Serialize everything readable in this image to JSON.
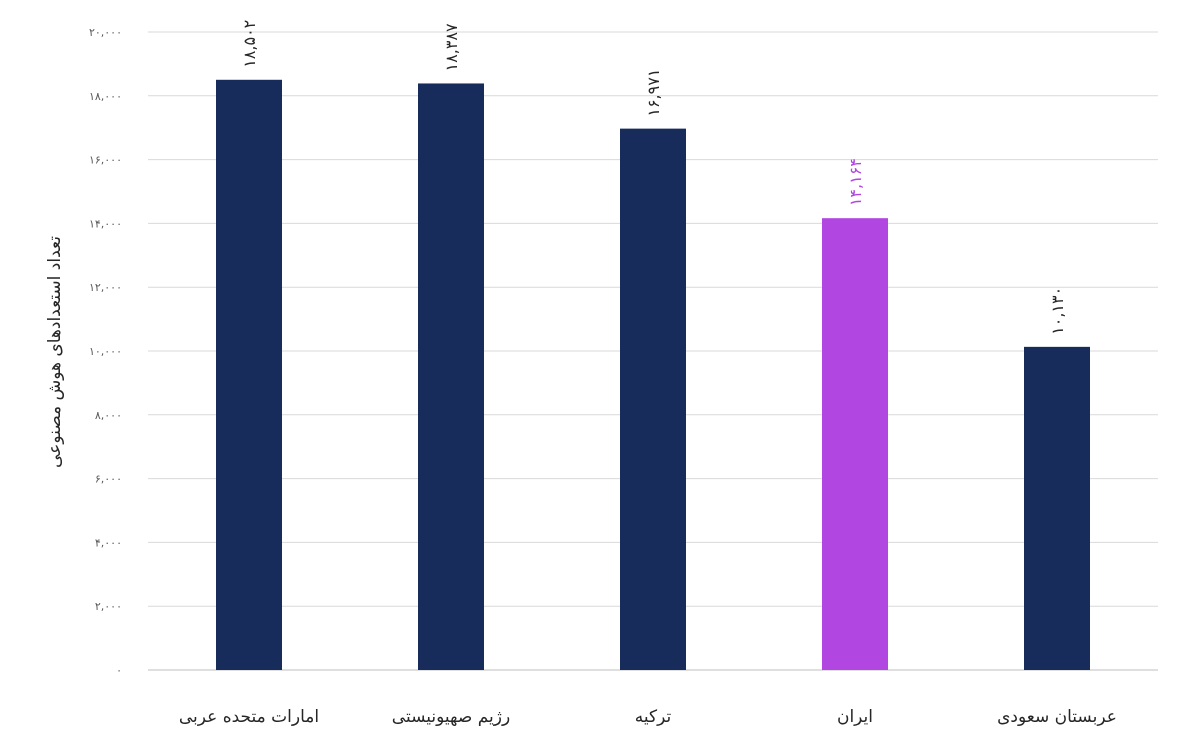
{
  "chart_data": {
    "type": "bar",
    "ylabel": "تعداد استعدادهای هوش مصنوعی",
    "ylim": [
      0,
      20000
    ],
    "yticks": [
      0,
      2000,
      4000,
      6000,
      8000,
      10000,
      12000,
      14000,
      16000,
      18000,
      20000
    ],
    "ytick_labels": [
      "۰",
      "۲,۰۰۰",
      "۴,۰۰۰",
      "۶,۰۰۰",
      "۸,۰۰۰",
      "۱۰,۰۰۰",
      "۱۲,۰۰۰",
      "۱۴,۰۰۰",
      "۱۶,۰۰۰",
      "۱۸,۰۰۰",
      "۲۰,۰۰۰"
    ],
    "categories": [
      "امارات متحده عربی",
      "رژیم صهیونیستی",
      "ترکیه",
      "ایران",
      "عربستان سعودی"
    ],
    "values": [
      18502,
      18387,
      16971,
      14164,
      10130
    ],
    "data_labels": [
      "۱۸,۵۰۲",
      "۱۸,۳۸۷",
      "۱۶,۹۷۱",
      "۱۴,۱۶۴",
      "۱۰,۱۳۰"
    ],
    "colors": [
      "#172c5b",
      "#172c5b",
      "#172c5b",
      "#b147e0",
      "#172c5b"
    ],
    "grid": true,
    "legend": "none"
  }
}
